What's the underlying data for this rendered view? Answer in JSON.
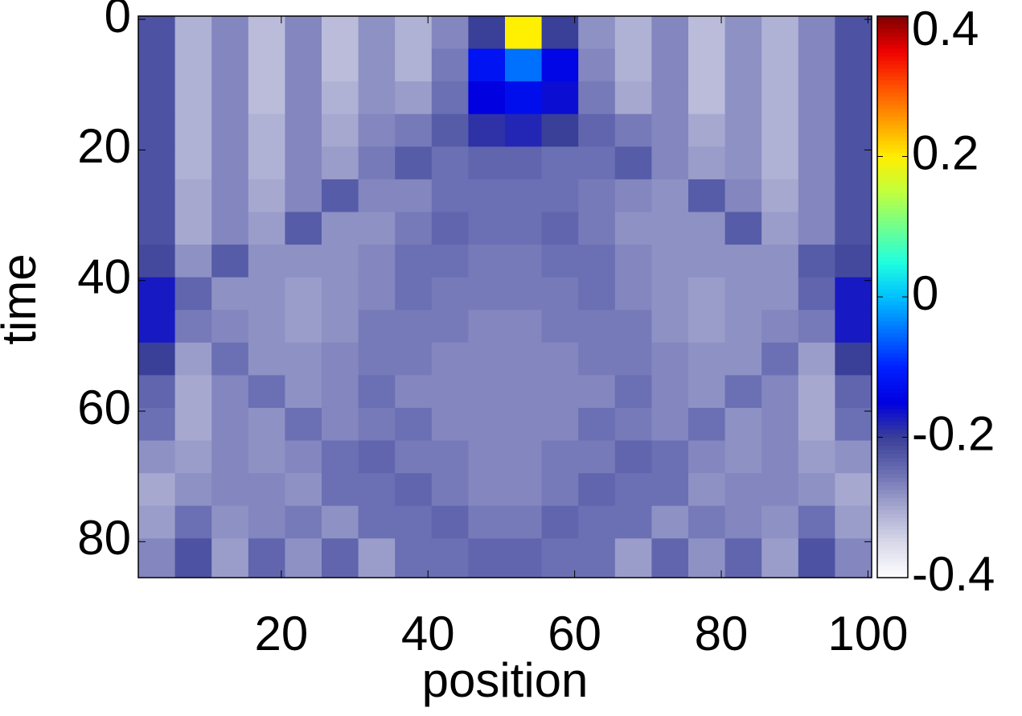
{
  "chart_data": {
    "type": "heatmap",
    "xlabel": "position",
    "ylabel": "time",
    "xbins": [
      0.5,
      5.5,
      10.5,
      15.5,
      20.5,
      25.5,
      30.5,
      35.5,
      40.5,
      45.5,
      50.5,
      55.5,
      60.5,
      65.5,
      70.5,
      75.5,
      80.5,
      85.5,
      90.5,
      95.5,
      100.5
    ],
    "ybins": [
      -0.5,
      4.5,
      9.5,
      14.5,
      19.5,
      24.5,
      29.5,
      34.5,
      39.5,
      44.5,
      49.5,
      54.5,
      59.5,
      64.5,
      69.5,
      74.5,
      79.5,
      85.5
    ],
    "xlim": [
      0.5,
      100.5
    ],
    "ylim": [
      -0.5,
      85.5
    ],
    "y_inverted": true,
    "xticks": [
      20,
      40,
      60,
      80,
      100
    ],
    "yticks": [
      0,
      20,
      40,
      60,
      80
    ],
    "clim": [
      -0.4,
      0.4
    ],
    "cticks": [
      -0.4,
      -0.2,
      0,
      0.2,
      0.4
    ],
    "colormap": [
      "#ffffff",
      "#d9d9ea",
      "#a6a8d0",
      "#6b6fb3",
      "#3a3f98",
      "#0000e0",
      "#0020ff",
      "#0070ff",
      "#00c0ff",
      "#20ffdf",
      "#70ff8f",
      "#c0ff3f",
      "#ffef00",
      "#ff9f00",
      "#ff5000",
      "#ef0000",
      "#800000"
    ],
    "values": [
      [
        -0.22,
        -0.31,
        -0.27,
        -0.32,
        -0.27,
        -0.32,
        -0.28,
        -0.31,
        -0.27,
        -0.2,
        0.2,
        -0.2,
        -0.28,
        -0.31,
        -0.27,
        -0.32,
        -0.28,
        -0.31,
        -0.27,
        -0.22
      ],
      [
        -0.22,
        -0.31,
        -0.27,
        -0.32,
        -0.27,
        -0.32,
        -0.28,
        -0.31,
        -0.26,
        -0.12,
        -0.05,
        -0.14,
        -0.27,
        -0.31,
        -0.27,
        -0.32,
        -0.28,
        -0.31,
        -0.27,
        -0.22
      ],
      [
        -0.22,
        -0.31,
        -0.27,
        -0.32,
        -0.27,
        -0.31,
        -0.28,
        -0.29,
        -0.25,
        -0.15,
        -0.13,
        -0.16,
        -0.26,
        -0.3,
        -0.27,
        -0.32,
        -0.28,
        -0.31,
        -0.27,
        -0.22
      ],
      [
        -0.22,
        -0.31,
        -0.27,
        -0.31,
        -0.27,
        -0.3,
        -0.27,
        -0.26,
        -0.23,
        -0.19,
        -0.18,
        -0.2,
        -0.24,
        -0.26,
        -0.27,
        -0.3,
        -0.28,
        -0.31,
        -0.27,
        -0.22
      ],
      [
        -0.22,
        -0.31,
        -0.27,
        -0.31,
        -0.27,
        -0.29,
        -0.26,
        -0.23,
        -0.25,
        -0.24,
        -0.24,
        -0.25,
        -0.25,
        -0.23,
        -0.27,
        -0.29,
        -0.28,
        -0.31,
        -0.27,
        -0.22
      ],
      [
        -0.22,
        -0.3,
        -0.27,
        -0.3,
        -0.27,
        -0.23,
        -0.27,
        -0.27,
        -0.25,
        -0.25,
        -0.25,
        -0.25,
        -0.26,
        -0.27,
        -0.28,
        -0.23,
        -0.27,
        -0.3,
        -0.27,
        -0.22
      ],
      [
        -0.22,
        -0.3,
        -0.27,
        -0.29,
        -0.23,
        -0.28,
        -0.28,
        -0.26,
        -0.24,
        -0.25,
        -0.25,
        -0.24,
        -0.26,
        -0.28,
        -0.28,
        -0.28,
        -0.23,
        -0.29,
        -0.27,
        -0.22
      ],
      [
        -0.21,
        -0.28,
        -0.23,
        -0.28,
        -0.28,
        -0.28,
        -0.27,
        -0.25,
        -0.25,
        -0.26,
        -0.26,
        -0.25,
        -0.25,
        -0.27,
        -0.28,
        -0.28,
        -0.28,
        -0.28,
        -0.23,
        -0.21
      ],
      [
        -0.17,
        -0.24,
        -0.28,
        -0.28,
        -0.29,
        -0.28,
        -0.27,
        -0.25,
        -0.26,
        -0.26,
        -0.26,
        -0.26,
        -0.25,
        -0.27,
        -0.28,
        -0.29,
        -0.28,
        -0.28,
        -0.24,
        -0.17
      ],
      [
        -0.17,
        -0.26,
        -0.27,
        -0.28,
        -0.29,
        -0.28,
        -0.26,
        -0.26,
        -0.26,
        -0.27,
        -0.27,
        -0.26,
        -0.26,
        -0.26,
        -0.28,
        -0.29,
        -0.28,
        -0.27,
        -0.26,
        -0.17
      ],
      [
        -0.2,
        -0.29,
        -0.25,
        -0.28,
        -0.28,
        -0.27,
        -0.26,
        -0.26,
        -0.27,
        -0.27,
        -0.27,
        -0.27,
        -0.26,
        -0.26,
        -0.27,
        -0.28,
        -0.28,
        -0.25,
        -0.29,
        -0.2
      ],
      [
        -0.24,
        -0.3,
        -0.27,
        -0.25,
        -0.28,
        -0.27,
        -0.25,
        -0.27,
        -0.27,
        -0.27,
        -0.27,
        -0.27,
        -0.27,
        -0.25,
        -0.27,
        -0.28,
        -0.25,
        -0.27,
        -0.3,
        -0.24
      ],
      [
        -0.25,
        -0.3,
        -0.27,
        -0.28,
        -0.25,
        -0.27,
        -0.26,
        -0.25,
        -0.27,
        -0.27,
        -0.27,
        -0.27,
        -0.25,
        -0.26,
        -0.27,
        -0.25,
        -0.28,
        -0.27,
        -0.3,
        -0.25
      ],
      [
        -0.28,
        -0.29,
        -0.27,
        -0.28,
        -0.27,
        -0.25,
        -0.24,
        -0.26,
        -0.26,
        -0.27,
        -0.27,
        -0.26,
        -0.26,
        -0.24,
        -0.25,
        -0.27,
        -0.28,
        -0.27,
        -0.29,
        -0.28
      ],
      [
        -0.3,
        -0.28,
        -0.27,
        -0.27,
        -0.28,
        -0.25,
        -0.25,
        -0.24,
        -0.26,
        -0.27,
        -0.27,
        -0.26,
        -0.24,
        -0.25,
        -0.25,
        -0.28,
        -0.27,
        -0.27,
        -0.28,
        -0.3
      ],
      [
        -0.29,
        -0.25,
        -0.28,
        -0.27,
        -0.26,
        -0.28,
        -0.25,
        -0.25,
        -0.24,
        -0.26,
        -0.26,
        -0.24,
        -0.25,
        -0.25,
        -0.28,
        -0.26,
        -0.27,
        -0.28,
        -0.25,
        -0.29
      ],
      [
        -0.27,
        -0.22,
        -0.29,
        -0.24,
        -0.28,
        -0.24,
        -0.29,
        -0.25,
        -0.25,
        -0.24,
        -0.24,
        -0.25,
        -0.25,
        -0.29,
        -0.24,
        -0.28,
        -0.24,
        -0.29,
        -0.22,
        -0.27
      ]
    ]
  }
}
